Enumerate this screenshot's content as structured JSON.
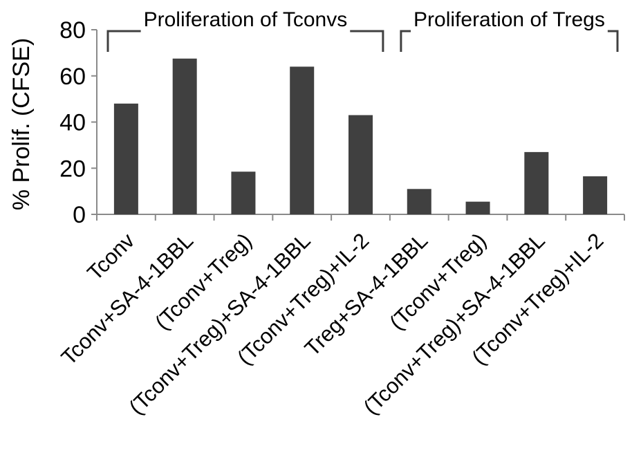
{
  "chart_data": {
    "type": "bar",
    "title": "",
    "xlabel": "",
    "ylabel": "% Prolif. (CFSE)",
    "ylim": [
      0,
      80
    ],
    "yticks": [
      0,
      20,
      40,
      60,
      80
    ],
    "grid": false,
    "legend": "none",
    "categories": [
      "Tconv",
      "Tconv+SA-4-1BBL",
      "(Tconv+Treg)",
      "(Tconv+Treg)+SA-4-1BBL",
      "(Tconv+Treg)+IL-2",
      "Treg+SA-4-1BBL",
      "(Tconv+Treg)",
      "(Tconv+Treg)+SA-4-1BBL",
      "(Tconv+Treg)+IL-2"
    ],
    "values": [
      48,
      67.5,
      18.5,
      64,
      43,
      11,
      5.5,
      27,
      16.5
    ],
    "bar_color": "#404040",
    "groups": [
      {
        "label": "Proliferation of Tconvs",
        "from": 0,
        "to": 4
      },
      {
        "label": "Proliferation of Tregs",
        "from": 5,
        "to": 8
      }
    ]
  }
}
